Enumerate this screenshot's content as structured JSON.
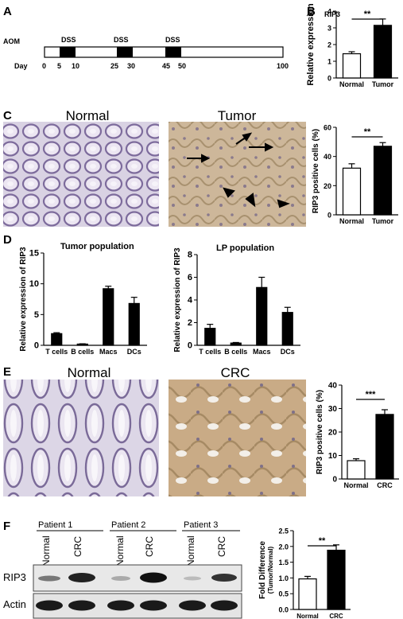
{
  "panels": {
    "A": {
      "label": "A",
      "left_title": "AOM",
      "day_label": "Day",
      "dss_label": "DSS",
      "ticks": [
        "0",
        "5",
        "10",
        "25",
        "30",
        "45",
        "50",
        "100"
      ]
    },
    "B": {
      "label": "B",
      "gene": "RIP3"
    },
    "C": {
      "label": "C",
      "img_left": "Normal",
      "img_right": "Tumor"
    },
    "D": {
      "label": "D",
      "title_left": "Tumor population",
      "title_right": "LP population"
    },
    "E": {
      "label": "E",
      "img_left": "Normal",
      "img_right": "CRC"
    },
    "F": {
      "label": "F",
      "patients": [
        "Patient 1",
        "Patient 2",
        "Patient 3"
      ],
      "lanes": [
        "Normal",
        "CRC",
        "Normal",
        "CRC",
        "Normal",
        "CRC"
      ],
      "blot_rows": [
        "RIP3",
        "Actin"
      ]
    }
  },
  "chart_data": [
    {
      "id": "B",
      "type": "bar",
      "categories": [
        "Normal",
        "Tumor"
      ],
      "values": [
        1.45,
        3.15
      ],
      "errors": [
        0.12,
        0.38
      ],
      "ylabel": "Relative expression",
      "ylim": [
        0,
        4
      ],
      "yticks": [
        0,
        1,
        2,
        3,
        4
      ],
      "sig": "**"
    },
    {
      "id": "C",
      "type": "bar",
      "categories": [
        "Normal",
        "Tumor"
      ],
      "values": [
        32,
        47
      ],
      "errors": [
        3,
        2.5
      ],
      "ylabel": "RIP3 positive cells (%)",
      "ylim": [
        0,
        60
      ],
      "yticks": [
        0,
        20,
        40,
        60
      ],
      "sig": "**"
    },
    {
      "id": "D1",
      "type": "bar",
      "title": "Tumor population",
      "categories": [
        "T cells",
        "B cells",
        "Macs",
        "DCs"
      ],
      "values": [
        1.9,
        0.2,
        9.2,
        6.8
      ],
      "errors": [
        0.15,
        0.05,
        0.4,
        1.0
      ],
      "ylabel": "Relative expression of RIP3",
      "ylim": [
        0,
        15
      ],
      "yticks": [
        0,
        5,
        10,
        15
      ]
    },
    {
      "id": "D2",
      "type": "bar",
      "title": "LP population",
      "categories": [
        "T cells",
        "B cells",
        "Macs",
        "DCs"
      ],
      "values": [
        1.5,
        0.2,
        5.1,
        2.9
      ],
      "errors": [
        0.35,
        0.05,
        0.9,
        0.45
      ],
      "ylabel": "Relative expression of RIP3",
      "ylim": [
        0,
        8
      ],
      "yticks": [
        0,
        2,
        4,
        6,
        8
      ]
    },
    {
      "id": "E",
      "type": "bar",
      "categories": [
        "Normal",
        "CRC"
      ],
      "values": [
        7.8,
        27.5
      ],
      "errors": [
        0.8,
        2.0
      ],
      "ylabel": "RIP3 positive cells (%)",
      "ylim": [
        0,
        40
      ],
      "yticks": [
        0,
        10,
        20,
        30,
        40
      ],
      "sig": "***"
    },
    {
      "id": "F",
      "type": "bar",
      "categories": [
        "Normal",
        "CRC"
      ],
      "values": [
        0.97,
        1.88
      ],
      "errors": [
        0.08,
        0.17
      ],
      "ylabel": "Fold Difference",
      "ylabel2": "(Tumor/Normal)",
      "ylim": [
        0,
        2.5
      ],
      "yticks": [
        "0.0",
        "0.5",
        "1.0",
        "1.5",
        "2.0",
        "2.5"
      ],
      "sig": "**"
    }
  ]
}
